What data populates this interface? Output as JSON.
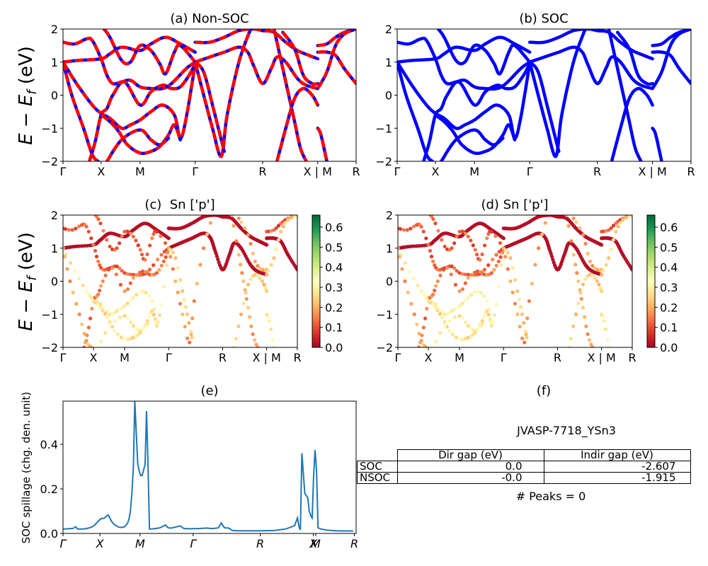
{
  "figure": {
    "material_id": "JVASP-7718_YSn3",
    "peaks_label": "# Peaks = 0"
  },
  "chart_data": [
    {
      "id": "a",
      "type": "line",
      "title": "(a) Non-SOC",
      "ylabel": "E − E_f (eV)",
      "ylim": [
        -2,
        2
      ],
      "yticks": [
        -2,
        -1,
        0,
        1,
        2
      ],
      "xticks": [
        {
          "label": "Γ",
          "pos": 0.0
        },
        {
          "label": "X",
          "pos": 0.13
        },
        {
          "label": "M",
          "pos": 0.263
        },
        {
          "label": "Γ",
          "pos": 0.451
        },
        {
          "label": "R",
          "pos": 0.681
        },
        {
          "label": "X | M",
          "pos": 0.869
        },
        {
          "label": "R",
          "pos": 1.0
        }
      ],
      "style": "red line with blue dashes (non-SOC over SOC)",
      "colors": {
        "primary": "#ff0000",
        "secondary": "#0000ff"
      },
      "bands": [
        [
          [
            0,
            1.0
          ],
          [
            0.05,
            1.05
          ],
          [
            0.13,
            1.1
          ],
          [
            0.16,
            1.25
          ],
          [
            0.2,
            1.45
          ],
          [
            0.263,
            1.35
          ],
          [
            0.3,
            1.55
          ],
          [
            0.35,
            1.75
          ],
          [
            0.4,
            1.55
          ],
          [
            0.451,
            1.3
          ]
        ],
        [
          [
            0,
            1.6
          ],
          [
            0.04,
            1.55
          ],
          [
            0.08,
            1.7
          ],
          [
            0.1,
            1.65
          ],
          [
            0.13,
            1.1
          ],
          [
            0.15,
            0.6
          ],
          [
            0.17,
            0.35
          ],
          [
            0.2,
            0.4
          ],
          [
            0.23,
            0.45
          ],
          [
            0.263,
            0.25
          ],
          [
            0.3,
            0.2
          ],
          [
            0.34,
            0.2
          ],
          [
            0.37,
            0.35
          ],
          [
            0.42,
            0.8
          ],
          [
            0.451,
            1.0
          ]
        ],
        [
          [
            0,
            1.0
          ],
          [
            0.05,
            0.3
          ],
          [
            0.1,
            -0.3
          ],
          [
            0.13,
            -0.55
          ],
          [
            0.16,
            -0.7
          ],
          [
            0.2,
            -1.0
          ],
          [
            0.23,
            -0.9
          ],
          [
            0.263,
            -0.75
          ],
          [
            0.3,
            -0.5
          ],
          [
            0.34,
            -0.3
          ],
          [
            0.38,
            -0.6
          ],
          [
            0.4,
            -1.3
          ],
          [
            0.42,
            -0.7
          ],
          [
            0.451,
            0.95
          ]
        ],
        [
          [
            0,
            1.0
          ],
          [
            0.03,
            0.0
          ],
          [
            0.07,
            -1.0
          ],
          [
            0.1,
            -1.8
          ],
          [
            0.12,
            -2.0
          ]
        ],
        [
          [
            0.09,
            -2.0
          ],
          [
            0.11,
            -1.4
          ],
          [
            0.13,
            -0.6
          ],
          [
            0.15,
            -0.4
          ],
          [
            0.17,
            0.0
          ],
          [
            0.21,
            0.4
          ],
          [
            0.263,
            -0.3
          ],
          [
            0.3,
            0.1
          ],
          [
            0.34,
            0.3
          ],
          [
            0.37,
            0.2
          ],
          [
            0.4,
            0.25
          ],
          [
            0.43,
            0.6
          ],
          [
            0.451,
            0.95
          ]
        ],
        [
          [
            0.13,
            -0.6
          ],
          [
            0.16,
            -0.8
          ],
          [
            0.19,
            -1.1
          ],
          [
            0.22,
            -1.5
          ],
          [
            0.263,
            -1.75
          ],
          [
            0.3,
            -1.7
          ],
          [
            0.33,
            -1.55
          ],
          [
            0.36,
            -1.2
          ],
          [
            0.38,
            -0.9
          ],
          [
            0.4,
            -1.35
          ]
        ],
        [
          [
            0.15,
            -2.0
          ],
          [
            0.2,
            -1.35
          ],
          [
            0.263,
            -1.05
          ],
          [
            0.3,
            -1.35
          ],
          [
            0.33,
            -1.5
          ],
          [
            0.36,
            -1.3
          ]
        ],
        [
          [
            0.14,
            2.0
          ],
          [
            0.16,
            1.75
          ],
          [
            0.2,
            1.05
          ],
          [
            0.23,
            1.0
          ],
          [
            0.263,
            1.5
          ],
          [
            0.3,
            1.35
          ],
          [
            0.33,
            0.95
          ],
          [
            0.35,
            0.65
          ],
          [
            0.38,
            1.3
          ],
          [
            0.4,
            1.5
          ],
          [
            0.451,
            1.0
          ]
        ],
        [
          [
            0.451,
            1.0
          ],
          [
            0.5,
            1.15
          ],
          [
            0.55,
            1.3
          ],
          [
            0.6,
            1.45
          ],
          [
            0.63,
            1.3
          ],
          [
            0.65,
            0.9
          ],
          [
            0.681,
            0.35
          ],
          [
            0.71,
            0.8
          ],
          [
            0.73,
            1.15
          ],
          [
            0.76,
            1.0
          ],
          [
            0.8,
            0.5
          ],
          [
            0.83,
            0.3
          ],
          [
            0.869,
            0.2
          ]
        ],
        [
          [
            0.451,
            1.0
          ],
          [
            0.48,
            0.0
          ],
          [
            0.51,
            -1.0
          ],
          [
            0.54,
            -1.85
          ],
          [
            0.56,
            -0.6
          ],
          [
            0.6,
            1.0
          ],
          [
            0.64,
            2.0
          ]
        ],
        [
          [
            0.451,
            1.0
          ],
          [
            0.48,
            0.7
          ],
          [
            0.51,
            -0.3
          ],
          [
            0.53,
            -1.0
          ],
          [
            0.55,
            -1.7
          ]
        ],
        [
          [
            0.451,
            1.6
          ],
          [
            0.5,
            1.6
          ],
          [
            0.55,
            1.75
          ],
          [
            0.6,
            1.95
          ],
          [
            0.65,
            2.0
          ],
          [
            0.681,
            1.95
          ],
          [
            0.72,
            1.9
          ],
          [
            0.76,
            1.6
          ],
          [
            0.8,
            1.35
          ],
          [
            0.84,
            1.2
          ],
          [
            0.869,
            1.1
          ]
        ],
        [
          [
            0.72,
            2.0
          ],
          [
            0.75,
            0.8
          ],
          [
            0.77,
            0.0
          ],
          [
            0.79,
            -0.8
          ],
          [
            0.81,
            -1.6
          ],
          [
            0.83,
            -2.0
          ]
        ],
        [
          [
            0.73,
            -2.0
          ],
          [
            0.76,
            -1.0
          ],
          [
            0.79,
            -0.1
          ],
          [
            0.82,
            0.2
          ],
          [
            0.85,
            0.0
          ],
          [
            0.869,
            -0.3
          ]
        ],
        [
          [
            0.75,
            1.9
          ],
          [
            0.79,
            1.4
          ],
          [
            0.82,
            0.6
          ],
          [
            0.85,
            0.35
          ],
          [
            0.869,
            0.35
          ]
        ],
        [
          [
            0.869,
            1.5
          ],
          [
            0.9,
            1.55
          ],
          [
            0.93,
            1.75
          ],
          [
            0.96,
            1.9
          ],
          [
            1.0,
            2.0
          ]
        ],
        [
          [
            0.869,
            1.3
          ],
          [
            0.9,
            1.3
          ],
          [
            0.93,
            1.2
          ],
          [
            0.96,
            0.8
          ],
          [
            1.0,
            0.35
          ]
        ],
        [
          [
            0.869,
            0.2
          ],
          [
            0.9,
            0.7
          ],
          [
            0.93,
            1.5
          ],
          [
            0.96,
            1.85
          ],
          [
            1.0,
            2.0
          ]
        ],
        [
          [
            0.869,
            -1.0
          ],
          [
            0.88,
            -1.2
          ],
          [
            0.9,
            -2.0
          ]
        ]
      ]
    },
    {
      "id": "b",
      "type": "line",
      "title": "(b) SOC",
      "ylim": [
        -2,
        2
      ],
      "yticks": [
        -2,
        -1,
        0,
        1,
        2
      ],
      "xticks": [
        {
          "label": "Γ",
          "pos": 0.0
        },
        {
          "label": "X",
          "pos": 0.13
        },
        {
          "label": "M",
          "pos": 0.263
        },
        {
          "label": "Γ",
          "pos": 0.451
        },
        {
          "label": "R",
          "pos": 0.681
        },
        {
          "label": "X | M",
          "pos": 0.869
        },
        {
          "label": "R",
          "pos": 1.0
        }
      ],
      "colors": {
        "primary": "#0000ff"
      },
      "bands_ref": "a"
    },
    {
      "id": "c",
      "type": "scatter",
      "title": "(c)  Sn ['p']",
      "ylabel": "E − E_f (eV)",
      "ylim": [
        -2,
        2
      ],
      "yticks": [
        -2,
        -1,
        0,
        1,
        2
      ],
      "xticks": [
        {
          "label": "Γ",
          "pos": 0.0
        },
        {
          "label": "X",
          "pos": 0.13
        },
        {
          "label": "M",
          "pos": 0.263
        },
        {
          "label": "Γ",
          "pos": 0.451
        },
        {
          "label": "R",
          "pos": 0.681
        },
        {
          "label": "X | M",
          "pos": 0.869
        },
        {
          "label": "R",
          "pos": 1.0
        }
      ],
      "colormap": "RdYlGn",
      "colorbar": {
        "min": 0.0,
        "max": 0.66,
        "ticks": [
          0.0,
          0.1,
          0.2,
          0.3,
          0.4,
          0.5,
          0.6
        ]
      },
      "bands_ref": "a",
      "band_weights": [
        0.02,
        0.12,
        0.3,
        0.2,
        0.15,
        0.28,
        0.3,
        0.12,
        0.02,
        0.18,
        0.25,
        0.02,
        0.2,
        0.25,
        0.2,
        0.12,
        0.02,
        0.25,
        0.3
      ]
    },
    {
      "id": "d",
      "type": "scatter",
      "title": "(d) Sn ['p']",
      "ylim": [
        -2,
        2
      ],
      "yticks": [
        -2,
        -1,
        0,
        1,
        2
      ],
      "xticks": [
        {
          "label": "Γ",
          "pos": 0.0
        },
        {
          "label": "X",
          "pos": 0.13
        },
        {
          "label": "M",
          "pos": 0.263
        },
        {
          "label": "Γ",
          "pos": 0.451
        },
        {
          "label": "R",
          "pos": 0.681
        },
        {
          "label": "X | M",
          "pos": 0.869
        },
        {
          "label": "R",
          "pos": 1.0
        }
      ],
      "colormap": "RdYlGn",
      "colorbar": {
        "min": 0.0,
        "max": 0.66,
        "ticks": [
          0.0,
          0.1,
          0.2,
          0.3,
          0.4,
          0.5,
          0.6
        ]
      },
      "bands_ref": "a",
      "band_weights": [
        0.02,
        0.12,
        0.32,
        0.2,
        0.15,
        0.28,
        0.3,
        0.12,
        0.02,
        0.18,
        0.25,
        0.02,
        0.2,
        0.25,
        0.2,
        0.12,
        0.02,
        0.25,
        0.3
      ]
    },
    {
      "id": "e",
      "type": "line",
      "title": "(e)",
      "ylabel": "SOC spillage (chg. den. unit)",
      "ylim": [
        0,
        0.594
      ],
      "yticks": [
        0.0,
        0.2,
        0.4
      ],
      "xticks": [
        {
          "label": "Γ",
          "pos": 0.0
        },
        {
          "label": "X",
          "pos": 0.126
        },
        {
          "label": "M",
          "pos": 0.263
        },
        {
          "label": "Γ",
          "pos": 0.444
        },
        {
          "label": "R",
          "pos": 0.673
        },
        {
          "label": "X",
          "pos": 0.854
        },
        {
          "label": "M",
          "pos": 0.862
        },
        {
          "label": "R",
          "pos": 0.994
        }
      ],
      "color": "#1f77b4",
      "x": [
        0.0,
        0.02,
        0.035,
        0.043,
        0.05,
        0.07,
        0.09,
        0.1,
        0.11,
        0.12,
        0.13,
        0.14,
        0.15,
        0.155,
        0.165,
        0.175,
        0.19,
        0.2,
        0.21,
        0.22,
        0.225,
        0.23,
        0.235,
        0.24,
        0.245,
        0.25,
        0.255,
        0.26,
        0.265,
        0.27,
        0.28,
        0.285,
        0.29,
        0.295,
        0.3,
        0.31,
        0.33,
        0.35,
        0.355,
        0.36,
        0.37,
        0.4,
        0.41,
        0.415,
        0.43,
        0.46,
        0.49,
        0.51,
        0.53,
        0.54,
        0.55,
        0.555,
        0.565,
        0.575,
        0.58,
        0.6,
        0.63,
        0.67,
        0.72,
        0.76,
        0.79,
        0.8,
        0.805,
        0.81,
        0.815,
        0.825,
        0.835,
        0.84,
        0.845,
        0.85,
        0.855,
        0.86,
        0.865,
        0.87,
        0.88,
        0.9,
        0.93,
        0.96,
        0.99
      ],
      "y": [
        0.02,
        0.021,
        0.023,
        0.03,
        0.02,
        0.02,
        0.025,
        0.03,
        0.04,
        0.055,
        0.067,
        0.068,
        0.08,
        0.083,
        0.055,
        0.04,
        0.028,
        0.027,
        0.03,
        0.045,
        0.065,
        0.1,
        0.18,
        0.3,
        0.594,
        0.45,
        0.31,
        0.28,
        0.26,
        0.26,
        0.31,
        0.55,
        0.3,
        0.02,
        0.02,
        0.021,
        0.025,
        0.038,
        0.03,
        0.025,
        0.024,
        0.034,
        0.024,
        0.022,
        0.021,
        0.022,
        0.024,
        0.022,
        0.025,
        0.047,
        0.026,
        0.025,
        0.024,
        0.016,
        0.013,
        0.012,
        0.012,
        0.012,
        0.013,
        0.02,
        0.035,
        0.07,
        0.03,
        0.016,
        0.36,
        0.18,
        0.16,
        0.1,
        0.08,
        0.07,
        0.26,
        0.375,
        0.28,
        0.025,
        0.02,
        0.015,
        0.012,
        0.011,
        0.011
      ]
    }
  ],
  "table": {
    "title": "(f)",
    "columns": [
      "",
      "Dir gap (eV)",
      "Indir gap (eV)"
    ],
    "rows": [
      {
        "label": "SOC",
        "dir_gap": "0.0",
        "indir_gap": "-2.607"
      },
      {
        "label": "NSOC",
        "dir_gap": "-0.0",
        "indir_gap": "-1.915"
      }
    ]
  }
}
